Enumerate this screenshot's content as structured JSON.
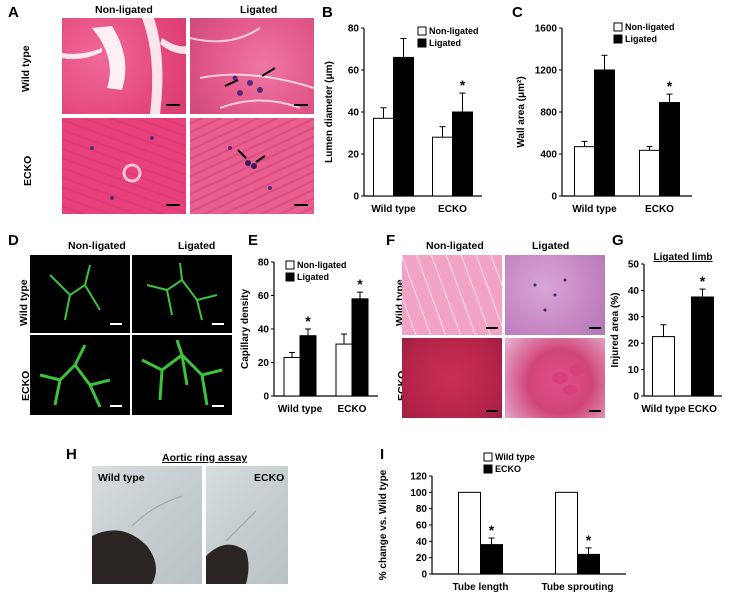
{
  "panels": {
    "A": {
      "letter": "A",
      "col_non": "Non-ligated",
      "col_lig": "Ligated",
      "row_wt": "Wild type",
      "row_ecko": "ECKO"
    },
    "B": {
      "letter": "B"
    },
    "C": {
      "letter": "C"
    },
    "D": {
      "letter": "D",
      "col_non": "Non-ligated",
      "col_lig": "Ligated",
      "row_wt": "Wild type",
      "row_ecko": "ECKO"
    },
    "E": {
      "letter": "E"
    },
    "F": {
      "letter": "F",
      "col_non": "Non-ligated",
      "col_lig": "Ligated",
      "row_wt": "Wild type",
      "row_ecko": "ECKO"
    },
    "G": {
      "letter": "G"
    },
    "H": {
      "letter": "H",
      "title": "Aortic ring assay",
      "label_wt": "Wild type",
      "label_ecko": "ECKO"
    },
    "I": {
      "letter": "I"
    }
  },
  "chart_data": [
    {
      "panel": "B",
      "type": "bar",
      "categories": [
        "Wild type",
        "ECKO"
      ],
      "series": [
        {
          "name": "Non-ligated",
          "values": [
            37,
            28
          ],
          "errors": [
            5,
            5
          ],
          "color": "#ffffff"
        },
        {
          "name": "Ligated",
          "values": [
            66,
            40
          ],
          "errors": [
            9,
            9
          ],
          "color": "#000000"
        }
      ],
      "ylabel": "Lumen diameter (μm)",
      "ylim": [
        0,
        80
      ],
      "yticks": [
        0,
        20,
        40,
        60,
        80
      ],
      "significance": [
        {
          "category": "ECKO",
          "series": "Ligated",
          "mark": "*"
        }
      ]
    },
    {
      "panel": "C",
      "type": "bar",
      "categories": [
        "Wild type",
        "ECKO"
      ],
      "series": [
        {
          "name": "Non-ligated",
          "values": [
            470,
            435
          ],
          "errors": [
            50,
            35
          ],
          "color": "#ffffff"
        },
        {
          "name": "Ligated",
          "values": [
            1200,
            890
          ],
          "errors": [
            140,
            80
          ],
          "color": "#000000"
        }
      ],
      "ylabel": "Wall area (μm²)",
      "ylim": [
        0,
        1600
      ],
      "yticks": [
        0,
        400,
        800,
        1200,
        1600
      ],
      "significance": [
        {
          "category": "ECKO",
          "series": "Ligated",
          "mark": "*"
        }
      ]
    },
    {
      "panel": "E",
      "type": "bar",
      "categories": [
        "Wild type",
        "ECKO"
      ],
      "series": [
        {
          "name": "Non-ligated",
          "values": [
            23,
            31
          ],
          "errors": [
            3,
            6
          ],
          "color": "#ffffff"
        },
        {
          "name": "Ligated",
          "values": [
            36,
            58
          ],
          "errors": [
            4,
            4
          ],
          "color": "#000000"
        }
      ],
      "ylabel": "Capillary density",
      "ylim": [
        0,
        80
      ],
      "yticks": [
        0,
        20,
        40,
        60,
        80
      ],
      "significance": [
        {
          "category": "Wild type",
          "series": "Ligated",
          "mark": "*"
        },
        {
          "category": "ECKO",
          "series": "Ligated",
          "mark": "*"
        }
      ]
    },
    {
      "panel": "G",
      "type": "bar",
      "title": "Ligated limb",
      "categories": [
        "Wild type",
        "ECKO"
      ],
      "series": [
        {
          "name": "",
          "values": [
            22.5,
            37.5
          ],
          "errors": [
            4.5,
            3
          ],
          "colors": [
            "#ffffff",
            "#000000"
          ]
        }
      ],
      "ylabel": "Injured area (%)",
      "ylim": [
        0,
        50
      ],
      "yticks": [
        0,
        10,
        20,
        30,
        40,
        50
      ],
      "significance": [
        {
          "category": "ECKO",
          "mark": "*"
        }
      ]
    },
    {
      "panel": "I",
      "type": "bar",
      "categories": [
        "Tube length",
        "Tube sprouting"
      ],
      "series": [
        {
          "name": "Wild type",
          "values": [
            100,
            100
          ],
          "errors": [
            0,
            0
          ],
          "color": "#ffffff"
        },
        {
          "name": "ECKO",
          "values": [
            36,
            24
          ],
          "errors": [
            8,
            8
          ],
          "color": "#000000"
        }
      ],
      "ylabel": "% change vs. Wild type",
      "ylim": [
        0,
        120
      ],
      "yticks": [
        0,
        20,
        40,
        60,
        80,
        100,
        120
      ],
      "significance": [
        {
          "category": "Tube length",
          "series": "ECKO",
          "mark": "*"
        },
        {
          "category": "Tube sprouting",
          "series": "ECKO",
          "mark": "*"
        }
      ]
    }
  ]
}
